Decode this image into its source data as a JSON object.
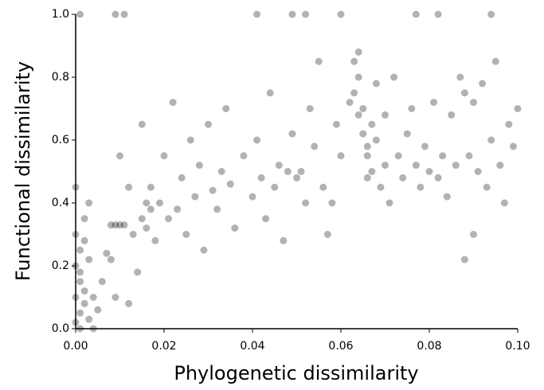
{
  "chart_data": {
    "type": "scatter",
    "x_label": "Phylogenetic dissimilarity",
    "y_label": "Functional dissimilarity",
    "color": "#000000",
    "xlim": [
      0,
      0.1
    ],
    "ylim": [
      0,
      1
    ],
    "xticks": [
      {
        "value": 0,
        "label": "0.00"
      },
      {
        "value": 0.02,
        "label": "0.02"
      },
      {
        "value": 0.04,
        "label": "0.04"
      },
      {
        "value": 0.06,
        "label": "0.06"
      },
      {
        "value": 0.08,
        "label": "0.08"
      },
      {
        "value": 0.1,
        "label": "0.10"
      }
    ],
    "yticks": [
      {
        "value": 0,
        "label": "0.0"
      },
      {
        "value": 0.2,
        "label": "0.2"
      },
      {
        "value": 0.4,
        "label": "0.4"
      },
      {
        "value": 0.6,
        "label": "0.6"
      },
      {
        "value": 0.8,
        "label": "0.8"
      },
      {
        "value": 1,
        "label": "1.0"
      }
    ],
    "x": [
      0.0,
      0.001,
      0.0,
      0.002,
      0.001,
      0.003,
      0.0,
      0.001,
      0.002,
      0.004,
      0.0,
      0.001,
      0.003,
      0.002,
      0.0,
      0.004,
      0.001,
      0.005,
      0.002,
      0.003,
      0.006,
      0.007,
      0.008,
      0.009,
      0.01,
      0.011,
      0.012,
      0.008,
      0.009,
      0.01,
      0.013,
      0.014,
      0.015,
      0.016,
      0.016,
      0.017,
      0.017,
      0.018,
      0.015,
      0.012,
      0.019,
      0.02,
      0.021,
      0.022,
      0.023,
      0.024,
      0.025,
      0.026,
      0.027,
      0.028,
      0.029,
      0.03,
      0.031,
      0.032,
      0.033,
      0.034,
      0.035,
      0.036,
      0.038,
      0.04,
      0.041,
      0.042,
      0.043,
      0.044,
      0.045,
      0.046,
      0.047,
      0.048,
      0.049,
      0.05,
      0.051,
      0.052,
      0.053,
      0.054,
      0.055,
      0.056,
      0.057,
      0.058,
      0.059,
      0.06,
      0.062,
      0.063,
      0.063,
      0.064,
      0.064,
      0.065,
      0.065,
      0.066,
      0.066,
      0.067,
      0.067,
      0.068,
      0.068,
      0.069,
      0.07,
      0.07,
      0.071,
      0.072,
      0.064,
      0.066,
      0.073,
      0.074,
      0.075,
      0.076,
      0.077,
      0.078,
      0.079,
      0.08,
      0.081,
      0.082,
      0.083,
      0.084,
      0.085,
      0.086,
      0.087,
      0.088,
      0.089,
      0.09,
      0.091,
      0.092,
      0.093,
      0.094,
      0.095,
      0.096,
      0.097,
      0.098,
      0.099,
      0.1,
      0.09,
      0.088,
      0.001,
      0.009,
      0.011,
      0.041,
      0.049,
      0.052,
      0.06,
      0.077,
      0.082,
      0.094
    ],
    "y": [
      0.02,
      0.05,
      0.1,
      0.08,
      0.15,
      0.03,
      0.2,
      0.25,
      0.12,
      0.0,
      0.3,
      0.18,
      0.22,
      0.35,
      0.45,
      0.1,
      0.0,
      0.06,
      0.28,
      0.4,
      0.15,
      0.24,
      0.33,
      0.33,
      0.33,
      0.33,
      0.45,
      0.22,
      0.1,
      0.55,
      0.3,
      0.18,
      0.35,
      0.4,
      0.32,
      0.38,
      0.45,
      0.28,
      0.65,
      0.08,
      0.4,
      0.55,
      0.35,
      0.72,
      0.38,
      0.48,
      0.3,
      0.6,
      0.42,
      0.52,
      0.25,
      0.65,
      0.44,
      0.38,
      0.5,
      0.7,
      0.46,
      0.32,
      0.55,
      0.42,
      0.6,
      0.48,
      0.35,
      0.75,
      0.45,
      0.52,
      0.28,
      0.5,
      0.62,
      0.48,
      0.5,
      0.4,
      0.7,
      0.58,
      0.85,
      0.45,
      0.3,
      0.4,
      0.65,
      0.55,
      0.72,
      0.85,
      0.75,
      0.8,
      0.68,
      0.62,
      0.7,
      0.58,
      0.55,
      0.65,
      0.5,
      0.6,
      0.78,
      0.45,
      0.52,
      0.68,
      0.4,
      0.8,
      0.88,
      0.48,
      0.55,
      0.48,
      0.62,
      0.7,
      0.52,
      0.45,
      0.58,
      0.5,
      0.72,
      0.48,
      0.55,
      0.42,
      0.68,
      0.52,
      0.8,
      0.75,
      0.55,
      0.72,
      0.5,
      0.78,
      0.45,
      0.6,
      0.85,
      0.52,
      0.4,
      0.65,
      0.58,
      0.7,
      0.3,
      0.22,
      1.0,
      1.0,
      1.0,
      1.0,
      1.0,
      1.0,
      1.0,
      1.0,
      1.0,
      1.0
    ]
  }
}
